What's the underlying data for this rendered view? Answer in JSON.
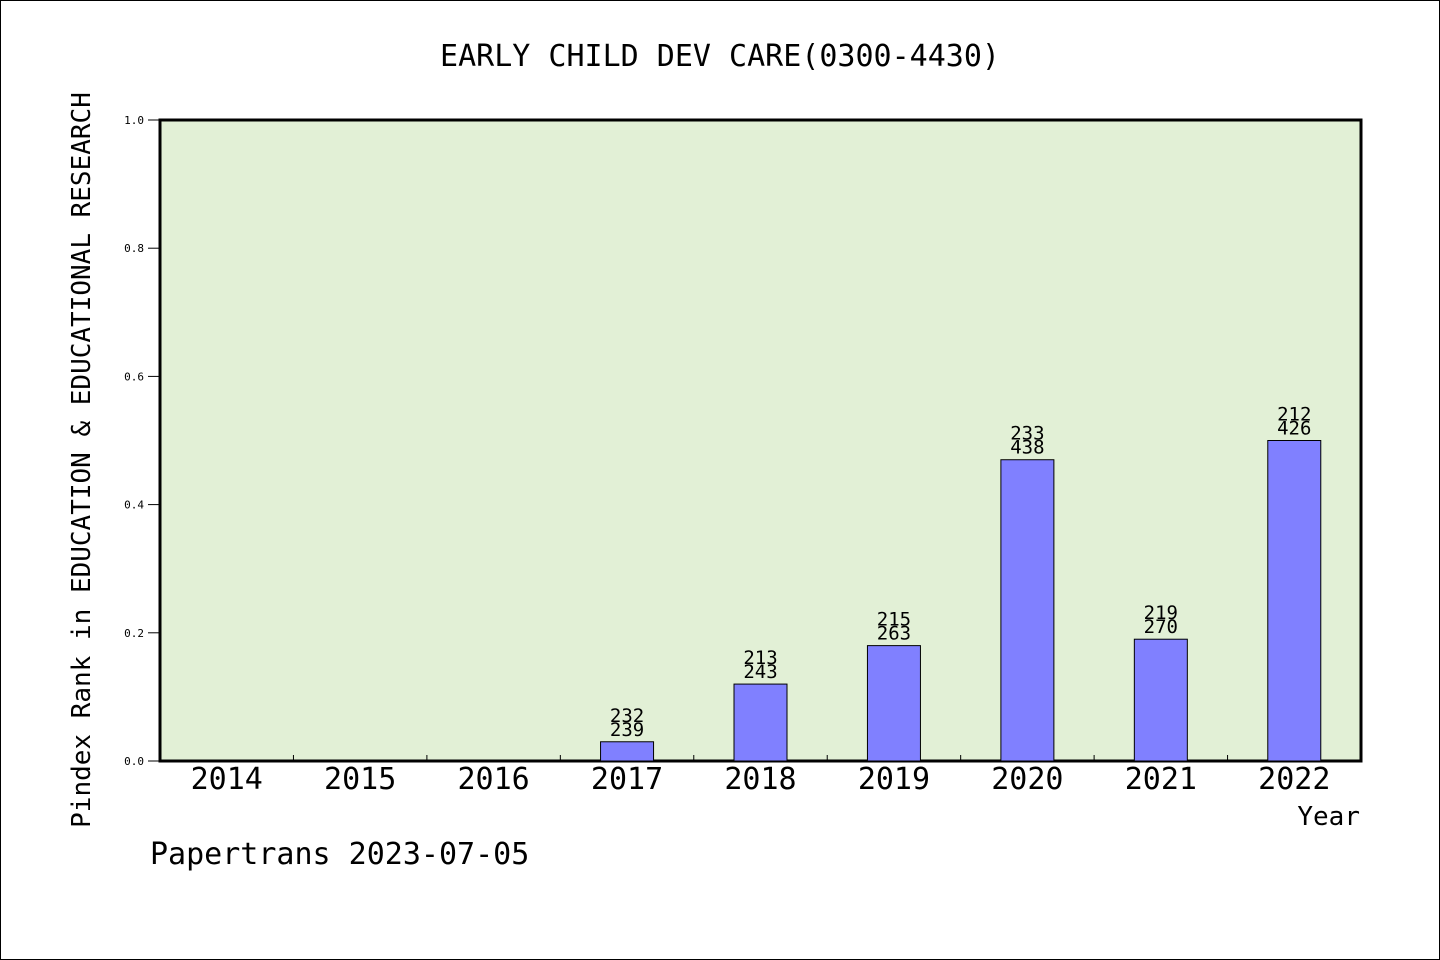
{
  "colors": {
    "plot_background": "#e2f0d6",
    "bar_fill": "#8080ff",
    "bar_stroke": "#000000",
    "axis": "#000000",
    "page_background": "#ffffff"
  },
  "footer": {
    "source_text": "Papertrans 2023-07-05"
  },
  "chart_data": {
    "type": "bar",
    "title": "EARLY CHILD DEV CARE(0300-4430)",
    "xlabel": "Year",
    "ylabel": "Pindex Rank in EDUCATION & EDUCATIONAL RESEARCH",
    "ylim": [
      0,
      1.0
    ],
    "y_ticks": [
      "0.0",
      "0.2",
      "0.4",
      "0.6",
      "0.8",
      "1.0"
    ],
    "y_tick_values": [
      0,
      0.2,
      0.4,
      0.6,
      0.8,
      1.0
    ],
    "grid": false,
    "categories": [
      "2014",
      "2015",
      "2016",
      "2017",
      "2018",
      "2019",
      "2020",
      "2021",
      "2022"
    ],
    "values": [
      0,
      0,
      0,
      0.03,
      0.12,
      0.18,
      0.47,
      0.19,
      0.5
    ],
    "labels_top": [
      "",
      "",
      "",
      "232",
      "213",
      "215",
      "233",
      "219",
      "212"
    ],
    "labels_bottom": [
      "",
      "",
      "",
      "239",
      "243",
      "263",
      "438",
      "270",
      "426"
    ]
  }
}
